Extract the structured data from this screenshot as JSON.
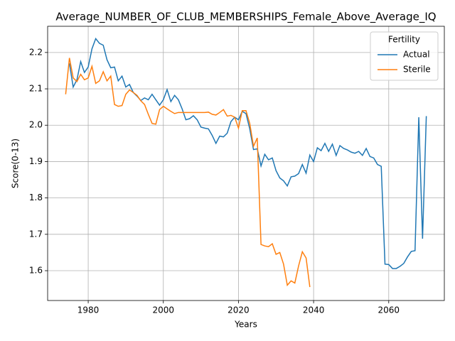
{
  "chart_data": {
    "type": "line",
    "title": "Average_NUMBER_OF_CLUB_MEMBERSHIPS_Female_Above_Average_IQ",
    "xlabel": "Years",
    "ylabel": "Score(0-13)",
    "x": [
      1974,
      1975,
      1976,
      1977,
      1978,
      1979,
      1980,
      1981,
      1982,
      1983,
      1984,
      1985,
      1986,
      1987,
      1988,
      1989,
      1990,
      1991,
      1992,
      1993,
      1994,
      1995,
      1996,
      1997,
      1998,
      1999,
      2000,
      2001,
      2002,
      2003,
      2004,
      2005,
      2006,
      2007,
      2008,
      2009,
      2010,
      2011,
      2012,
      2013,
      2014,
      2015,
      2016,
      2017,
      2018,
      2019,
      2020,
      2021,
      2022,
      2023,
      2024,
      2025,
      2026,
      2027,
      2028,
      2029,
      2030,
      2031,
      2032,
      2033,
      2034,
      2035,
      2036,
      2037,
      2038,
      2039,
      2040,
      2041,
      2042,
      2043,
      2044,
      2045,
      2046,
      2047,
      2048,
      2049,
      2050,
      2051,
      2052,
      2053,
      2054,
      2055,
      2056,
      2057,
      2058,
      2059,
      2060,
      2061,
      2062,
      2063,
      2064,
      2065,
      2066,
      2067,
      2068,
      2069,
      2070
    ],
    "series": [
      {
        "name": "Actual",
        "color": "#1f77b4",
        "values": [
          null,
          2.17,
          2.105,
          2.125,
          2.175,
          2.145,
          2.16,
          2.21,
          2.238,
          2.225,
          2.22,
          2.18,
          2.158,
          2.16,
          2.122,
          2.135,
          2.105,
          2.112,
          2.09,
          2.08,
          2.068,
          2.075,
          2.07,
          2.085,
          2.07,
          2.055,
          2.07,
          2.098,
          2.065,
          2.082,
          2.07,
          2.045,
          2.015,
          2.018,
          2.026,
          2.015,
          1.995,
          1.992,
          1.99,
          1.972,
          1.95,
          1.97,
          1.968,
          1.978,
          2.01,
          2.022,
          2.015,
          2.038,
          2.032,
          1.99,
          1.933,
          1.935,
          1.888,
          1.92,
          1.905,
          1.91,
          1.875,
          1.855,
          1.847,
          1.833,
          1.858,
          1.86,
          1.867,
          1.892,
          1.868,
          1.918,
          1.9,
          1.938,
          1.93,
          1.95,
          1.928,
          1.948,
          1.917,
          1.944,
          1.936,
          1.932,
          1.926,
          1.923,
          1.928,
          1.917,
          1.936,
          1.914,
          1.91,
          1.892,
          1.887,
          1.618,
          1.617,
          1.606,
          1.606,
          1.612,
          1.62,
          1.638,
          1.653,
          1.655,
          2.022,
          1.688,
          2.025
        ]
      },
      {
        "name": "Sterile",
        "color": "#ff7f0e",
        "values": [
          2.085,
          2.185,
          2.13,
          2.12,
          2.14,
          2.125,
          2.13,
          2.162,
          2.115,
          2.122,
          2.147,
          2.122,
          2.135,
          2.057,
          2.052,
          2.054,
          2.085,
          2.097,
          2.09,
          2.082,
          2.067,
          2.057,
          2.03,
          2.005,
          2.003,
          2.043,
          2.052,
          2.045,
          2.038,
          2.032,
          2.035,
          2.035,
          2.035,
          2.035,
          2.035,
          2.035,
          2.035,
          2.035,
          2.036,
          2.03,
          2.028,
          2.035,
          2.043,
          2.025,
          2.027,
          2.022,
          1.992,
          2.04,
          2.04,
          2.005,
          1.942,
          1.965,
          1.672,
          1.668,
          1.666,
          1.674,
          1.645,
          1.65,
          1.618,
          1.56,
          1.572,
          1.566,
          1.613,
          1.652,
          1.635,
          1.555,
          null,
          null,
          null,
          null,
          null,
          null,
          null,
          null,
          null,
          null,
          null,
          null,
          null,
          null,
          null,
          null,
          null,
          null,
          null,
          null,
          null,
          null,
          null,
          null,
          null,
          null,
          null,
          null,
          null,
          null,
          null
        ]
      }
    ],
    "xlim": [
      1969.2,
      2074.8
    ],
    "ylim": [
      1.518,
      2.272
    ],
    "xticks": [
      1980,
      2000,
      2020,
      2040,
      2060
    ],
    "yticks": [
      1.6,
      1.7,
      1.8,
      1.9,
      {
        "value": 2,
        "label": "2.0"
      },
      2.1,
      2.2
    ],
    "grid": true,
    "legend_title": "Fertility",
    "legend_loc": "upper right"
  }
}
